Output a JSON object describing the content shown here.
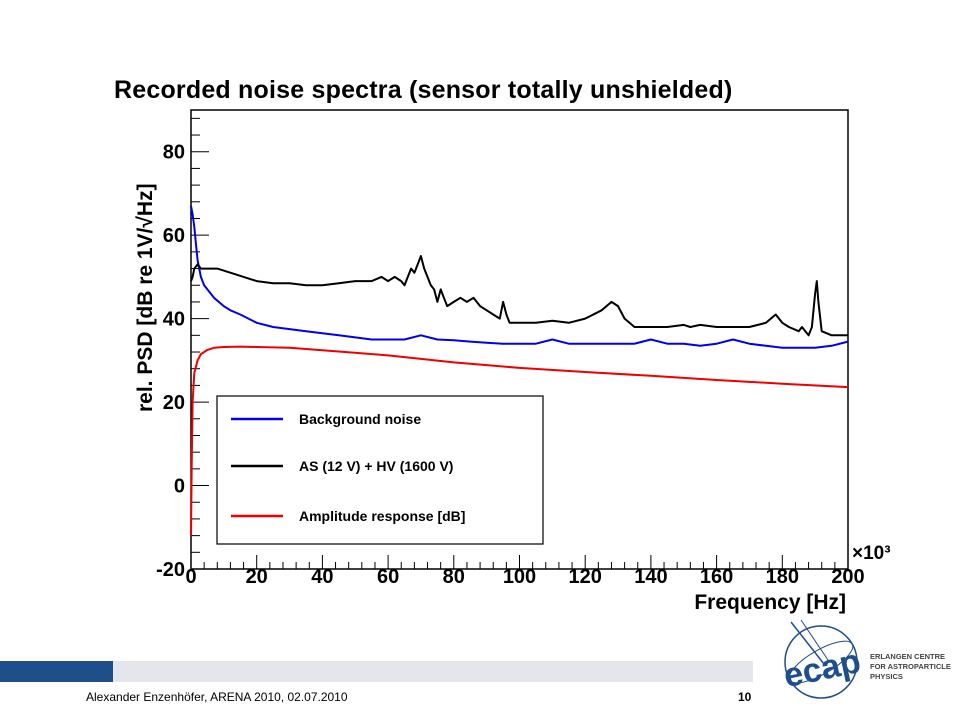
{
  "slide": {
    "title": "Recorded noise spectra (sensor totally unshielded)",
    "footer_author": "Alexander Enzenhöfer, ARENA 2010, 02.07.2010",
    "page_number": "10",
    "footer_colors": {
      "dark": "#1f4e8c",
      "light": "#e3e6ea"
    }
  },
  "logo": {
    "text": "ecap",
    "line1": "ERLANGEN CENTRE",
    "line2": "FOR ASTROPARTICLE",
    "line3": "PHYSICS",
    "color": "#1f4e8c"
  },
  "chart_data": {
    "type": "line",
    "title": "",
    "xlabel": "Frequency [Hz]",
    "x_multiplier": "×10³",
    "ylabel": "rel. PSD [dB re 1V/√Hz]",
    "xlim": [
      0,
      200
    ],
    "ylim": [
      -20,
      90
    ],
    "xticks": [
      0,
      20,
      40,
      60,
      80,
      100,
      120,
      140,
      160,
      180,
      200
    ],
    "yticks": [
      -20,
      0,
      20,
      40,
      60,
      80
    ],
    "grid": false,
    "legend_position": "lower-left",
    "series": [
      {
        "name": "Background noise",
        "color": "#0000ee",
        "points": [
          [
            0,
            67
          ],
          [
            0.5,
            65
          ],
          [
            1,
            62
          ],
          [
            1.5,
            58
          ],
          [
            2,
            54
          ],
          [
            3,
            50
          ],
          [
            4,
            48
          ],
          [
            5,
            47
          ],
          [
            7,
            45
          ],
          [
            10,
            43
          ],
          [
            12,
            42
          ],
          [
            15,
            41
          ],
          [
            20,
            39
          ],
          [
            25,
            38
          ],
          [
            30,
            37.5
          ],
          [
            35,
            37
          ],
          [
            40,
            36.5
          ],
          [
            45,
            36
          ],
          [
            50,
            35.5
          ],
          [
            55,
            35
          ],
          [
            60,
            35
          ],
          [
            65,
            35
          ],
          [
            70,
            36
          ],
          [
            75,
            35
          ],
          [
            80,
            34.8
          ],
          [
            85,
            34.5
          ],
          [
            90,
            34.2
          ],
          [
            95,
            34
          ],
          [
            100,
            34
          ],
          [
            105,
            34
          ],
          [
            110,
            35
          ],
          [
            115,
            34
          ],
          [
            120,
            34
          ],
          [
            125,
            34
          ],
          [
            130,
            34
          ],
          [
            135,
            34
          ],
          [
            140,
            35
          ],
          [
            145,
            34
          ],
          [
            150,
            34
          ],
          [
            155,
            33.5
          ],
          [
            160,
            34
          ],
          [
            165,
            35
          ],
          [
            170,
            34
          ],
          [
            175,
            33.5
          ],
          [
            180,
            33
          ],
          [
            185,
            33
          ],
          [
            190,
            33
          ],
          [
            195,
            33.5
          ],
          [
            200,
            34.5
          ]
        ]
      },
      {
        "name": "AS (12 V) + HV (1600 V)",
        "color": "#000000",
        "points": [
          [
            0,
            49
          ],
          [
            0.5,
            50
          ],
          [
            1,
            52
          ],
          [
            2,
            53
          ],
          [
            3,
            52
          ],
          [
            5,
            52
          ],
          [
            8,
            52
          ],
          [
            12,
            51
          ],
          [
            16,
            50
          ],
          [
            20,
            49
          ],
          [
            25,
            48.5
          ],
          [
            30,
            48.5
          ],
          [
            35,
            48
          ],
          [
            40,
            48
          ],
          [
            45,
            48.5
          ],
          [
            50,
            49
          ],
          [
            55,
            49
          ],
          [
            58,
            50
          ],
          [
            60,
            49
          ],
          [
            62,
            50
          ],
          [
            64,
            49
          ],
          [
            65,
            48
          ],
          [
            66,
            50
          ],
          [
            67,
            52
          ],
          [
            68,
            51
          ],
          [
            69,
            53
          ],
          [
            70,
            55
          ],
          [
            71,
            52
          ],
          [
            72,
            50
          ],
          [
            73,
            48
          ],
          [
            74,
            47
          ],
          [
            75,
            44
          ],
          [
            76,
            47
          ],
          [
            77,
            45
          ],
          [
            78,
            43
          ],
          [
            80,
            44
          ],
          [
            82,
            45
          ],
          [
            84,
            44
          ],
          [
            86,
            45
          ],
          [
            88,
            43
          ],
          [
            90,
            42
          ],
          [
            92,
            41
          ],
          [
            94,
            40
          ],
          [
            95,
            44
          ],
          [
            96,
            41
          ],
          [
            97,
            39
          ],
          [
            100,
            39
          ],
          [
            105,
            39
          ],
          [
            110,
            39.5
          ],
          [
            115,
            39
          ],
          [
            120,
            40
          ],
          [
            125,
            42
          ],
          [
            128,
            44
          ],
          [
            130,
            43
          ],
          [
            132,
            40
          ],
          [
            135,
            38
          ],
          [
            140,
            38
          ],
          [
            145,
            38
          ],
          [
            150,
            38.5
          ],
          [
            152,
            38
          ],
          [
            155,
            38.5
          ],
          [
            160,
            38
          ],
          [
            165,
            38
          ],
          [
            170,
            38
          ],
          [
            175,
            39
          ],
          [
            178,
            41
          ],
          [
            180,
            39
          ],
          [
            182,
            38
          ],
          [
            185,
            37
          ],
          [
            186,
            38
          ],
          [
            187,
            37
          ],
          [
            188,
            36
          ],
          [
            189,
            38
          ],
          [
            190,
            46
          ],
          [
            190.5,
            49
          ],
          [
            191,
            44
          ],
          [
            192,
            37
          ],
          [
            195,
            36
          ],
          [
            200,
            36
          ]
        ]
      },
      {
        "name": "Amplitude response [dB]",
        "color": "#ee0000",
        "points": [
          [
            0,
            -12
          ],
          [
            0.2,
            5
          ],
          [
            0.5,
            20
          ],
          [
            1,
            27
          ],
          [
            2,
            30
          ],
          [
            3,
            31.5
          ],
          [
            5,
            32.5
          ],
          [
            7,
            33
          ],
          [
            10,
            33.2
          ],
          [
            15,
            33.3
          ],
          [
            20,
            33.2
          ],
          [
            30,
            33
          ],
          [
            40,
            32.4
          ],
          [
            60,
            31.2
          ],
          [
            80,
            29.5
          ],
          [
            100,
            28.2
          ],
          [
            120,
            27.2
          ],
          [
            140,
            26.3
          ],
          [
            160,
            25.3
          ],
          [
            180,
            24.4
          ],
          [
            200,
            23.6
          ]
        ]
      }
    ]
  }
}
